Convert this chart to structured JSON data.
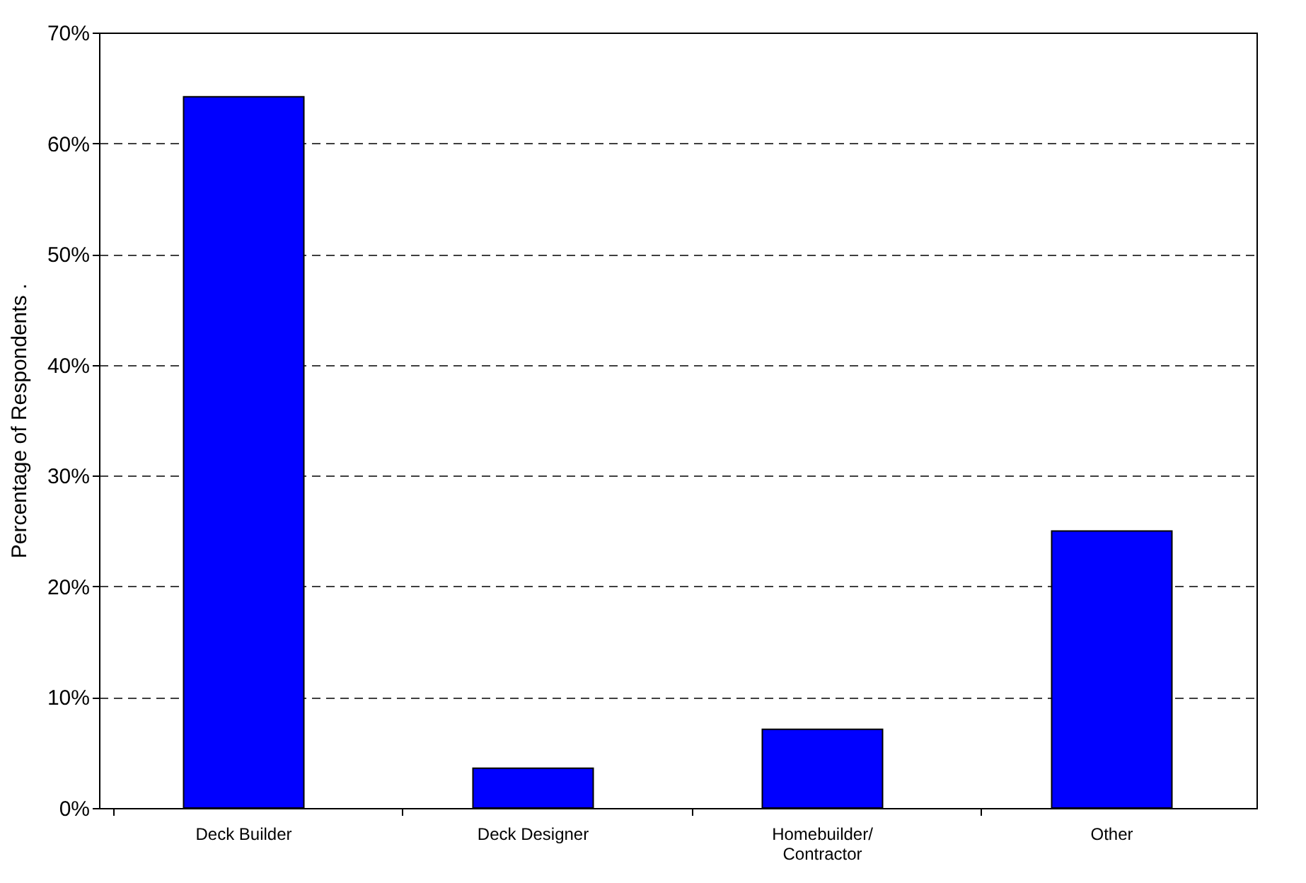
{
  "chart_data": {
    "type": "bar",
    "ylabel": "Percentage of Respondents   .",
    "categories": [
      "Deck Builder",
      "Deck Designer",
      "Homebuilder/ Contractor",
      "Other"
    ],
    "values": [
      64.2,
      3.6,
      7.1,
      25.0
    ],
    "color": "#0000ff",
    "ylim": [
      0,
      70
    ],
    "yticks": [
      {
        "value": 0,
        "label": "0%"
      },
      {
        "value": 10,
        "label": "10%"
      },
      {
        "value": 20,
        "label": "20%"
      },
      {
        "value": 30,
        "label": "30%"
      },
      {
        "value": 40,
        "label": "40%"
      },
      {
        "value": 50,
        "label": "50%"
      },
      {
        "value": 60,
        "label": "60%"
      },
      {
        "value": 70,
        "label": "70%"
      }
    ],
    "grid": "y"
  }
}
